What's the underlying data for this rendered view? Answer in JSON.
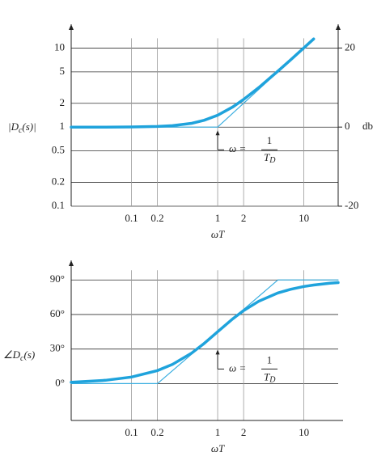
{
  "chart_data": [
    {
      "type": "line",
      "xscale": "log",
      "yscale": "log",
      "xlabel": "ωT",
      "ylabel": {
        "main": "|D",
        "sub": "c",
        "rest": "(s)|"
      },
      "y2label": "db",
      "xlim": [
        0.02,
        25
      ],
      "xticks": [
        0.1,
        0.2,
        1,
        2,
        10
      ],
      "ylim": [
        0.1,
        20
      ],
      "yticks": [
        0.1,
        0.2,
        0.5,
        1,
        2,
        5,
        10
      ],
      "y2lim": [
        -20,
        26
      ],
      "y2ticks": [
        -20,
        0,
        20
      ],
      "grid": true,
      "series": [
        {
          "name": "asymptote",
          "color": "#3aaee0",
          "width": 1.2,
          "x": [
            0.02,
            1,
            10
          ],
          "values": [
            1,
            1,
            10
          ]
        },
        {
          "name": "magnitude",
          "color": "#1fa3dc",
          "width": 3.5,
          "x": [
            0.02,
            0.05,
            0.1,
            0.2,
            0.3,
            0.5,
            0.7,
            1,
            1.5,
            2,
            3,
            5,
            7,
            10,
            13
          ],
          "values": [
            1.0,
            1.001,
            1.005,
            1.02,
            1.044,
            1.118,
            1.221,
            1.414,
            1.803,
            2.236,
            3.162,
            5.099,
            7.071,
            10.05,
            13.04
          ]
        }
      ],
      "annotation": {
        "lhs": "ω =",
        "numerator": "1",
        "denominator": "T",
        "subscript": "D",
        "x": 1,
        "y": 1
      }
    },
    {
      "type": "line",
      "xscale": "log",
      "yscale": "linear",
      "xlabel": "ωT",
      "ylabel": {
        "main": "∠D",
        "sub": "c",
        "rest": "(s)"
      },
      "xlim": [
        0.02,
        25
      ],
      "xticks": [
        0.1,
        0.2,
        1,
        2,
        10
      ],
      "ylim": [
        -32,
        107
      ],
      "yticks": [
        {
          "value": 0,
          "label": "0°"
        },
        {
          "value": 30,
          "label": "30°"
        },
        {
          "value": 60,
          "label": "60°"
        },
        {
          "value": 90,
          "label": "90°"
        }
      ],
      "grid": true,
      "series": [
        {
          "name": "asymptote",
          "color": "#3aaee0",
          "width": 1.2,
          "x": [
            0.02,
            0.2,
            5,
            25
          ],
          "values": [
            0,
            0,
            90,
            90
          ]
        },
        {
          "name": "phase",
          "color": "#1fa3dc",
          "width": 3.5,
          "x": [
            0.02,
            0.05,
            0.1,
            0.2,
            0.3,
            0.5,
            0.7,
            1,
            1.5,
            2,
            3,
            5,
            7,
            10,
            13,
            20,
            25
          ],
          "values": [
            1.15,
            2.86,
            5.71,
            11.31,
            16.7,
            26.57,
            34.99,
            45,
            56.31,
            63.43,
            71.57,
            78.69,
            81.87,
            84.29,
            85.6,
            87.14,
            87.71
          ]
        }
      ],
      "annotation": {
        "lhs": "ω =",
        "numerator": "1",
        "denominator": "T",
        "subscript": "D",
        "x": 1,
        "y": 45
      }
    }
  ]
}
